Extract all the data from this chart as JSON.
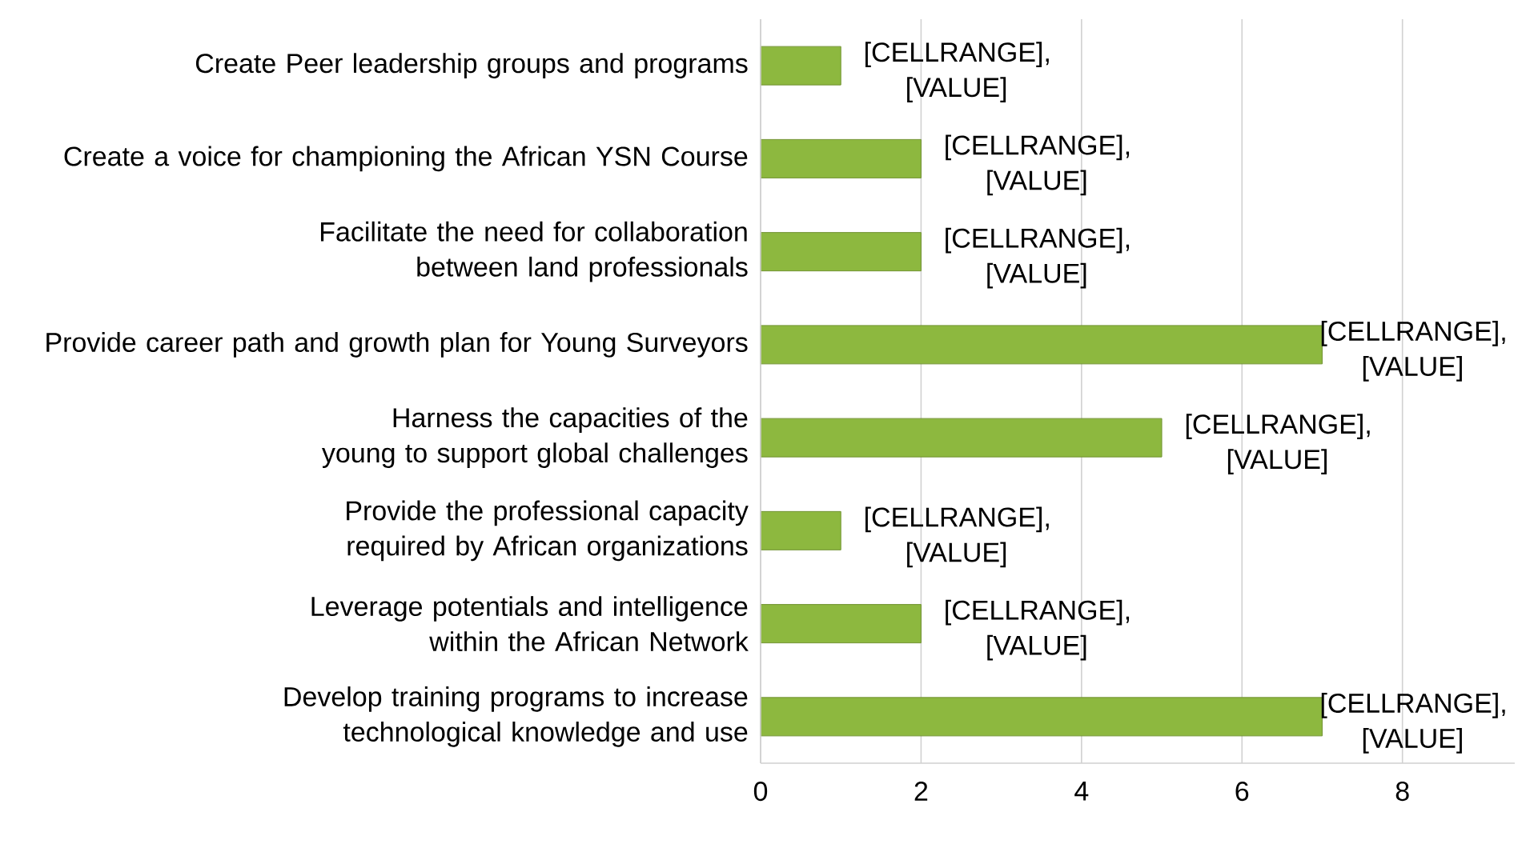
{
  "chart_data": {
    "type": "bar",
    "orientation": "horizontal",
    "categories": [
      "Create Peer leadership groups and programs",
      "Create a voice for championing the African YSN Course",
      "Facilitate the need for collaboration between land professionals",
      "Provide career path and growth plan for Young Surveyors",
      "Harness the capacities of the young to support global challenges",
      "Provide the professional capacity required by African organizations",
      "Leverage potentials and intelligence within the African Network",
      "Develop training programs to increase technological knowledge and use"
    ],
    "values": [
      1,
      2,
      2,
      7,
      5,
      1,
      2,
      7
    ],
    "value_labels": [
      "[CELLRANGE], [VALUE]",
      "[CELLRANGE], [VALUE]",
      "[CELLRANGE], [VALUE]",
      "[CELLRANGE], [VALUE]",
      "[CELLRANGE], [VALUE]",
      "[CELLRANGE], [VALUE]",
      "[CELLRANGE], [VALUE]",
      "[CELLRANGE], [VALUE]"
    ],
    "color": "#8db83f",
    "xlim": [
      0,
      9.4
    ],
    "xticks": [
      0,
      2,
      4,
      6,
      8
    ],
    "grid": "x"
  }
}
